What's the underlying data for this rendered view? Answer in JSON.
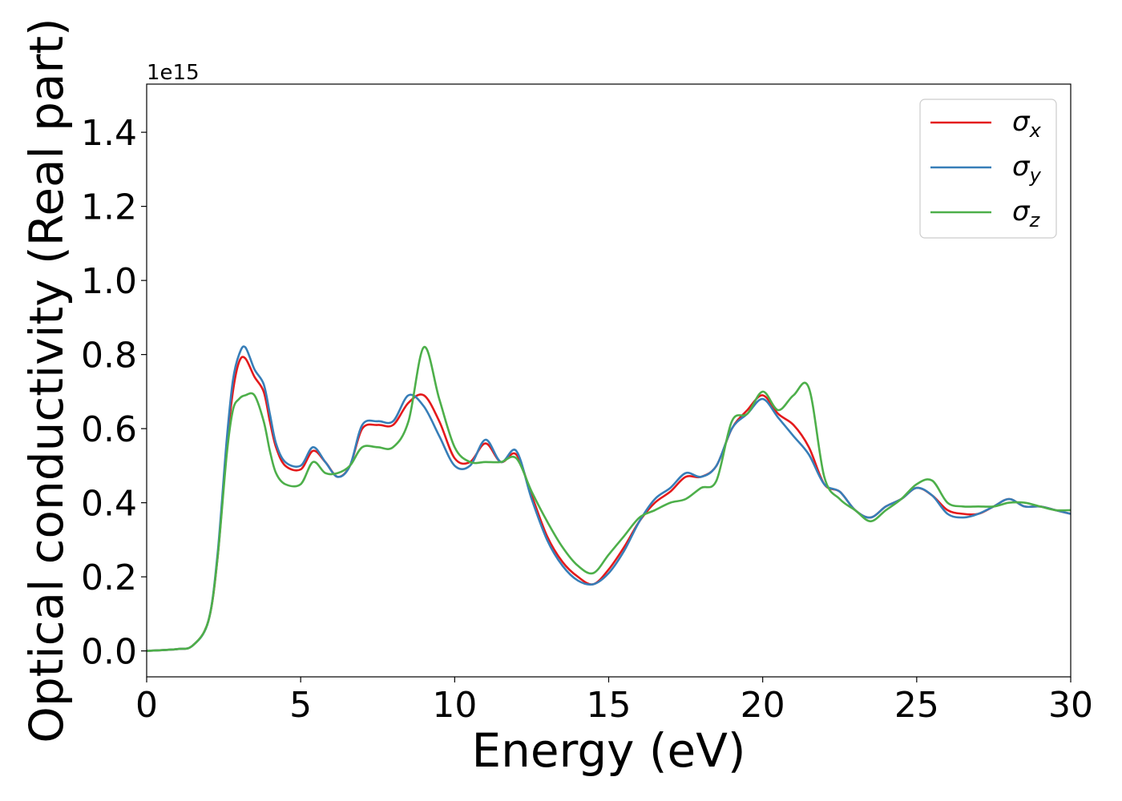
{
  "chart_data": {
    "type": "line",
    "title": "",
    "xlabel": "Energy (eV)",
    "ylabel": "Optical conductivity (Real part)",
    "y_offset_label": "1e15",
    "xlim": [
      0,
      30
    ],
    "ylim": [
      -0.07,
      1.53
    ],
    "xticks": [
      0,
      5,
      10,
      15,
      20,
      25,
      30
    ],
    "yticks": [
      0.0,
      0.2,
      0.4,
      0.6,
      0.8,
      1.0,
      1.2,
      1.4
    ],
    "xtick_labels": [
      "0",
      "5",
      "10",
      "15",
      "20",
      "25",
      "30"
    ],
    "ytick_labels": [
      "0.0",
      "0.2",
      "0.4",
      "0.6",
      "0.8",
      "1.0",
      "1.2",
      "1.4"
    ],
    "grid": false,
    "legend_position": "top-right",
    "series": [
      {
        "name": "σ",
        "subscript": "x",
        "color": "#e41a1c",
        "x": [
          0,
          1,
          1.5,
          2,
          2.3,
          2.6,
          2.8,
          3.0,
          3.2,
          3.5,
          3.8,
          4.0,
          4.2,
          4.5,
          5.0,
          5.4,
          5.8,
          6.2,
          6.6,
          7.0,
          7.5,
          8.0,
          8.5,
          9.0,
          9.5,
          10.0,
          10.5,
          11.0,
          11.5,
          12.0,
          12.5,
          13.0,
          13.5,
          14.0,
          14.5,
          15.0,
          15.5,
          16.0,
          16.5,
          17.0,
          17.5,
          18.0,
          18.5,
          19.0,
          19.5,
          20.0,
          20.5,
          21.0,
          21.5,
          22.0,
          22.5,
          23.0,
          23.5,
          24.0,
          24.5,
          25.0,
          25.5,
          26.0,
          26.5,
          27.0,
          27.5,
          28.0,
          28.5,
          29.0,
          29.5,
          30.0
        ],
        "values": [
          0.0,
          0.005,
          0.015,
          0.08,
          0.25,
          0.55,
          0.7,
          0.78,
          0.79,
          0.74,
          0.7,
          0.62,
          0.55,
          0.5,
          0.49,
          0.54,
          0.51,
          0.47,
          0.5,
          0.6,
          0.61,
          0.61,
          0.67,
          0.69,
          0.62,
          0.52,
          0.51,
          0.56,
          0.51,
          0.53,
          0.42,
          0.31,
          0.24,
          0.2,
          0.18,
          0.22,
          0.28,
          0.35,
          0.4,
          0.43,
          0.47,
          0.47,
          0.5,
          0.6,
          0.65,
          0.69,
          0.64,
          0.61,
          0.55,
          0.45,
          0.43,
          0.38,
          0.36,
          0.39,
          0.41,
          0.44,
          0.42,
          0.38,
          0.37,
          0.37,
          0.39,
          0.41,
          0.39,
          0.39,
          0.38,
          0.37
        ]
      },
      {
        "name": "σ",
        "subscript": "y",
        "color": "#377eb8",
        "x": [
          0,
          1,
          1.5,
          2,
          2.3,
          2.6,
          2.8,
          3.0,
          3.2,
          3.5,
          3.8,
          4.0,
          4.2,
          4.5,
          5.0,
          5.4,
          5.8,
          6.2,
          6.6,
          7.0,
          7.5,
          8.0,
          8.5,
          9.0,
          9.5,
          10.0,
          10.5,
          11.0,
          11.5,
          12.0,
          12.5,
          13.0,
          13.5,
          14.0,
          14.5,
          15.0,
          15.5,
          16.0,
          16.5,
          17.0,
          17.5,
          18.0,
          18.5,
          19.0,
          19.5,
          20.0,
          20.5,
          21.0,
          21.5,
          22.0,
          22.5,
          23.0,
          23.5,
          24.0,
          24.5,
          25.0,
          25.5,
          26.0,
          26.5,
          27.0,
          27.5,
          28.0,
          28.5,
          29.0,
          29.5,
          30.0
        ],
        "values": [
          0.0,
          0.005,
          0.015,
          0.08,
          0.26,
          0.57,
          0.73,
          0.8,
          0.82,
          0.76,
          0.72,
          0.64,
          0.56,
          0.51,
          0.5,
          0.55,
          0.51,
          0.47,
          0.5,
          0.61,
          0.62,
          0.62,
          0.69,
          0.66,
          0.58,
          0.5,
          0.5,
          0.57,
          0.51,
          0.54,
          0.41,
          0.3,
          0.23,
          0.19,
          0.18,
          0.21,
          0.27,
          0.35,
          0.41,
          0.44,
          0.48,
          0.47,
          0.5,
          0.6,
          0.64,
          0.68,
          0.63,
          0.58,
          0.53,
          0.45,
          0.43,
          0.38,
          0.36,
          0.39,
          0.41,
          0.44,
          0.42,
          0.37,
          0.36,
          0.37,
          0.39,
          0.41,
          0.39,
          0.39,
          0.38,
          0.37
        ]
      },
      {
        "name": "σ",
        "subscript": "z",
        "color": "#4daf4a",
        "x": [
          0,
          1,
          1.5,
          2,
          2.3,
          2.6,
          2.8,
          3.0,
          3.2,
          3.5,
          3.8,
          4.0,
          4.2,
          4.5,
          5.0,
          5.4,
          5.8,
          6.2,
          6.6,
          7.0,
          7.5,
          8.0,
          8.5,
          9.0,
          9.5,
          10.0,
          10.5,
          11.0,
          11.5,
          12.0,
          12.5,
          13.0,
          13.5,
          14.0,
          14.5,
          15.0,
          15.5,
          16.0,
          16.5,
          17.0,
          17.5,
          18.0,
          18.5,
          19.0,
          19.5,
          20.0,
          20.5,
          21.0,
          21.5,
          22.0,
          22.5,
          23.0,
          23.5,
          24.0,
          24.5,
          25.0,
          25.5,
          26.0,
          26.5,
          27.0,
          27.5,
          28.0,
          28.5,
          29.0,
          29.5,
          30.0
        ],
        "values": [
          0.0,
          0.005,
          0.015,
          0.08,
          0.25,
          0.53,
          0.65,
          0.68,
          0.69,
          0.69,
          0.62,
          0.54,
          0.48,
          0.45,
          0.45,
          0.51,
          0.48,
          0.48,
          0.5,
          0.55,
          0.55,
          0.55,
          0.62,
          0.82,
          0.68,
          0.55,
          0.51,
          0.51,
          0.51,
          0.52,
          0.43,
          0.35,
          0.28,
          0.23,
          0.21,
          0.26,
          0.31,
          0.36,
          0.38,
          0.4,
          0.41,
          0.44,
          0.46,
          0.62,
          0.64,
          0.7,
          0.65,
          0.69,
          0.71,
          0.47,
          0.41,
          0.38,
          0.35,
          0.38,
          0.41,
          0.45,
          0.46,
          0.4,
          0.39,
          0.39,
          0.39,
          0.4,
          0.4,
          0.39,
          0.38,
          0.38
        ]
      }
    ]
  }
}
